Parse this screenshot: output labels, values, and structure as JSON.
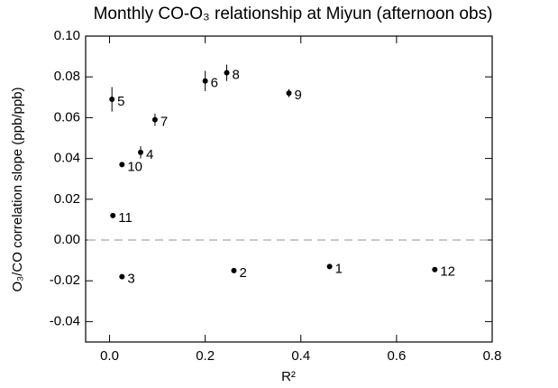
{
  "chart_data": {
    "type": "scatter",
    "title": "Monthly CO-O₃ relationship at Miyun (afternoon obs)",
    "x_label": "R²",
    "y_label": "O₃/CO correlation slope (ppb/ppb)",
    "labels": [
      "1",
      "2",
      "3",
      "4",
      "5",
      "6",
      "7",
      "8",
      "9",
      "10",
      "11",
      "12"
    ],
    "x": [
      0.46,
      0.26,
      0.026,
      0.065,
      0.005,
      0.2,
      0.095,
      0.245,
      0.375,
      0.026,
      0.007,
      0.68
    ],
    "values": [
      -0.013,
      -0.015,
      -0.018,
      0.043,
      0.069,
      0.078,
      0.059,
      0.082,
      0.072,
      0.037,
      0.012,
      -0.0145
    ],
    "errors": [
      0.001,
      0.001,
      0.001,
      0.003,
      0.006,
      0.005,
      0.003,
      0.004,
      0.002,
      0.001,
      0.001,
      0.001
    ],
    "color": "#000000",
    "reference_line": 0,
    "xlim": [
      -0.05,
      0.8
    ],
    "xticks": [
      {
        "value": 0,
        "label": "0.0"
      },
      {
        "value": 0.2,
        "label": "0.2"
      },
      {
        "value": 0.4,
        "label": "0.4"
      },
      {
        "value": 0.6,
        "label": "0.6"
      },
      {
        "value": 0.8,
        "label": "0.8"
      }
    ],
    "ylim": [
      -0.05,
      0.1
    ],
    "yticks": [
      {
        "value": -0.04,
        "label": "-0.04"
      },
      {
        "value": -0.02,
        "label": "-0.02"
      },
      {
        "value": 0,
        "label": "0.00"
      },
      {
        "value": 0.02,
        "label": "0.02"
      },
      {
        "value": 0.04,
        "label": "0.04"
      },
      {
        "value": 0.06,
        "label": "0.06"
      },
      {
        "value": 0.08,
        "label": "0.08"
      },
      {
        "value": 0.1,
        "label": "0.10"
      }
    ]
  }
}
